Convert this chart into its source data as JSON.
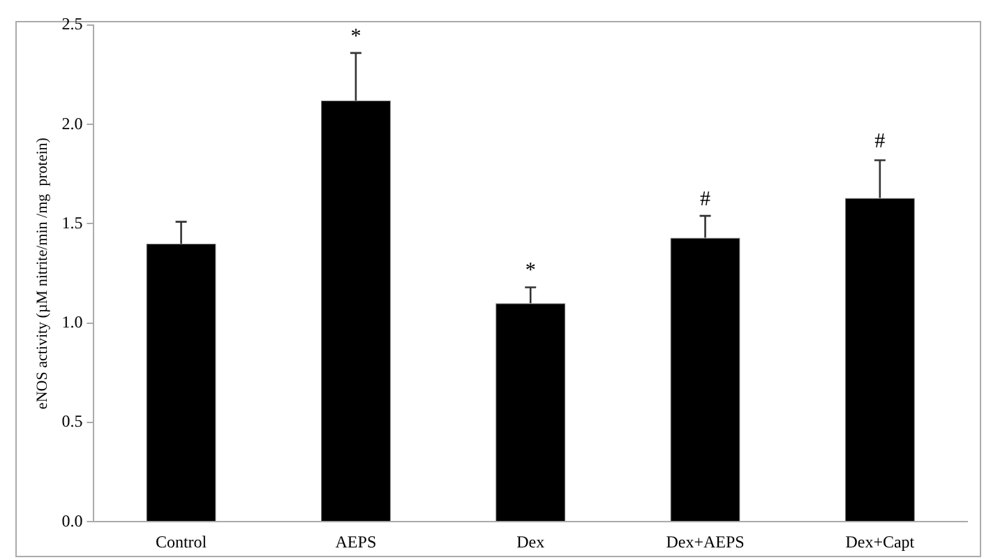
{
  "chart_data": {
    "type": "bar",
    "ylabel": "eNOS activity (µM nitrite/min /mg  protein)",
    "categories": [
      "Control",
      "AEPS",
      "Dex",
      "Dex+AEPS",
      "Dex+Capt"
    ],
    "values": [
      1.4,
      2.12,
      1.1,
      1.43,
      1.63
    ],
    "errors": [
      0.11,
      0.24,
      0.08,
      0.11,
      0.19
    ],
    "color": "#000000",
    "ylim": [
      0,
      2.5
    ],
    "yticks": [
      {
        "value": 0,
        "label": "0.0"
      },
      {
        "value": 0.5,
        "label": "0.5"
      },
      {
        "value": 1,
        "label": "1.0"
      },
      {
        "value": 1.5,
        "label": "1.5"
      },
      {
        "value": 2,
        "label": "2.0"
      },
      {
        "value": 2.5,
        "label": "2.5"
      }
    ],
    "grid": false,
    "legend": false,
    "annotations": [
      {
        "text": "*",
        "x": "AEPS",
        "y": 2.36
      },
      {
        "text": "*",
        "x": "Dex",
        "y": 1.18
      },
      {
        "text": "#",
        "x": "Dex+AEPS",
        "y": 1.54
      },
      {
        "text": "#",
        "x": "Dex+Capt",
        "y": 1.83
      }
    ]
  }
}
